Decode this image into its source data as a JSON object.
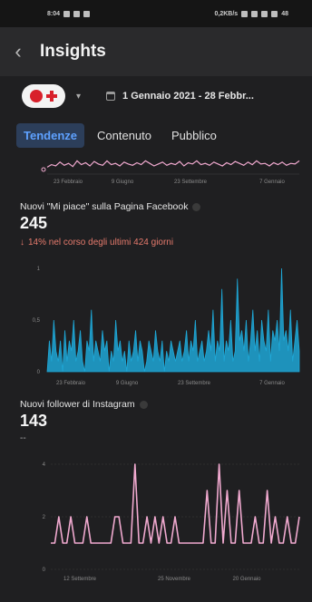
{
  "status_bar": {
    "time": "8:04",
    "net_speed": "0,2KB/s",
    "battery": "48"
  },
  "header": {
    "title": "Insights"
  },
  "account": {
    "date_range": "1 Gennaio 2021 - 28 Febbr..."
  },
  "tabs": [
    {
      "label": "Tendenze",
      "active": true
    },
    {
      "label": "Contenuto",
      "active": false
    },
    {
      "label": "Pubblico",
      "active": false
    }
  ],
  "colors": {
    "accent": "#5ea1ff",
    "cyan": "#1fa7d6",
    "pink": "#f0a9cf",
    "negative": "#e57a6c"
  },
  "metric_likes": {
    "title": "Nuovi \"Mi piace\" sulla Pagina Facebook",
    "value": "245",
    "change": "14% nel corso degli ultimi 424 giorni"
  },
  "metric_ig": {
    "title": "Nuovi follower di Instagram",
    "value": "143",
    "change": "--"
  },
  "chart_data": [
    {
      "type": "line",
      "title": "",
      "x_ticks": [
        "23 Febbraio",
        "9 Giugno",
        "23 Settembre",
        "7 Gennaio"
      ],
      "values": [
        0.4,
        0.6,
        0.5,
        0.8,
        0.55,
        0.7,
        0.45,
        0.9,
        0.6,
        0.75,
        0.5,
        0.85,
        0.65,
        0.55,
        0.9,
        0.6,
        0.7,
        0.5,
        0.8,
        0.65,
        0.55,
        0.75,
        0.6,
        0.9,
        0.7,
        0.5,
        0.65,
        0.8,
        0.55,
        0.7,
        0.6,
        0.85,
        0.5,
        0.75,
        0.65,
        0.9,
        0.6,
        0.7,
        0.55,
        0.8,
        0.65,
        0.5,
        0.75,
        0.6,
        0.85,
        0.7,
        0.55,
        0.8,
        0.6,
        0.9,
        0.65,
        0.7,
        0.5,
        0.75,
        0.6,
        0.8,
        0.55,
        0.7,
        0.65,
        0.9
      ]
    },
    {
      "type": "area",
      "title": "Nuovi \"Mi piace\" sulla Pagina Facebook",
      "ylim": [
        0,
        1
      ],
      "y_ticks": [
        "0",
        "0,5",
        "1"
      ],
      "x_ticks": [
        "23 Febbraio",
        "9 Giugno",
        "23 Settembre",
        "7 Gennaio"
      ],
      "values": [
        0,
        0.3,
        0.1,
        0.5,
        0.2,
        0.1,
        0.3,
        0,
        0.4,
        0.1,
        0.3,
        0.2,
        0.5,
        0.1,
        0.2,
        0.4,
        0.1,
        0,
        0.3,
        0.2,
        0.6,
        0.1,
        0.3,
        0.2,
        0.1,
        0.4,
        0.2,
        0.3,
        0,
        0.2,
        0.1,
        0.5,
        0.2,
        0.3,
        0.1,
        0.2,
        0,
        0.3,
        0.1,
        0.2,
        0.4,
        0.1,
        0.3,
        0.2,
        0,
        0.1,
        0.3,
        0.2,
        0.1,
        0.4,
        0.2,
        0.1,
        0.3,
        0,
        0.2,
        0.1,
        0.3,
        0.2,
        0.1,
        0.2,
        0.3,
        0.1,
        0.2,
        0.4,
        0.1,
        0.3,
        0.2,
        0.5,
        0.1,
        0.2,
        0.3,
        0.1,
        0.2,
        0.4,
        0.2,
        0.6,
        0.1,
        0.3,
        0.2,
        0.8,
        0.1,
        0.3,
        0.2,
        0.5,
        0.1,
        0.2,
        0.9,
        0.3,
        0.4,
        0.2,
        0.5,
        0.1,
        0.3,
        0.6,
        0.2,
        0.4,
        0.1,
        0.5,
        0.3,
        0.2,
        0.6,
        0.1,
        0.4,
        0.3,
        0.5,
        0.2,
        1.0,
        0.3,
        0.4,
        0.2,
        0.6,
        0.1,
        0.3,
        0.5,
        0.2
      ]
    },
    {
      "type": "line",
      "title": "Nuovi follower di Instagram",
      "ylim": [
        0,
        4
      ],
      "y_ticks": [
        "0",
        "2",
        "4"
      ],
      "x_ticks": [
        "12 Settembre",
        "25 Novembre",
        "20 Gennaio"
      ],
      "values": [
        1,
        1,
        2,
        1,
        1,
        2,
        1,
        1,
        1,
        2,
        1,
        1,
        1,
        1,
        1,
        1,
        2,
        2,
        1,
        1,
        1,
        4,
        1,
        1,
        2,
        1,
        2,
        1,
        2,
        1,
        1,
        2,
        1,
        1,
        1,
        1,
        1,
        1,
        1,
        3,
        1,
        1,
        4,
        1,
        3,
        1,
        1,
        3,
        1,
        1,
        1,
        2,
        1,
        1,
        3,
        1,
        2,
        1,
        1,
        2,
        1,
        1,
        2
      ]
    }
  ]
}
